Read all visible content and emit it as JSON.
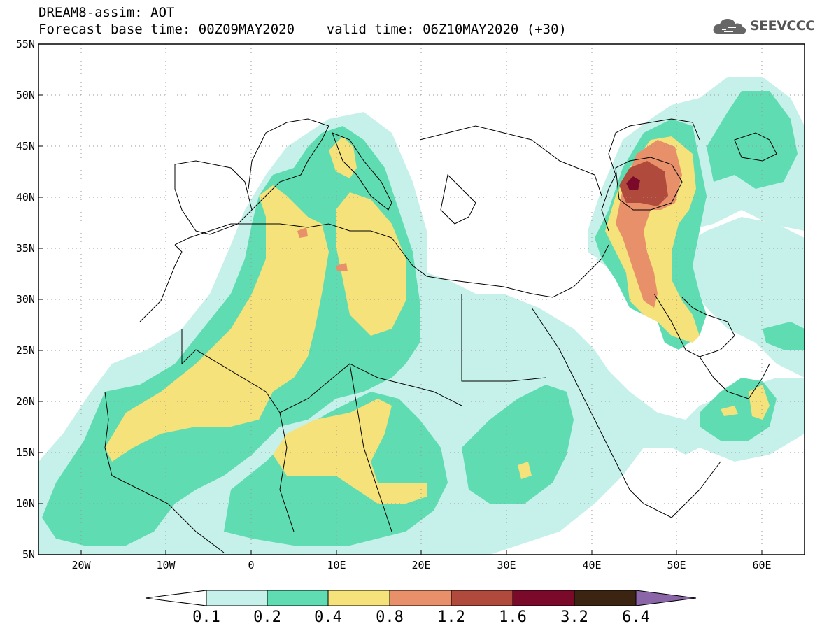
{
  "title": {
    "line1": "DREAM8-assim: AOT",
    "line2": "Forecast base time: 00Z09MAY2020    valid time: 06Z10MAY2020 (+30)"
  },
  "logo": {
    "text": "SEEVCCC",
    "icon": "cloud-icon"
  },
  "map": {
    "lat_labels": [
      "55N",
      "50N",
      "45N",
      "40N",
      "35N",
      "30N",
      "25N",
      "20N",
      "15N",
      "10N",
      "5N"
    ],
    "lon_labels": [
      "20W",
      "10W",
      "0",
      "10E",
      "20E",
      "30E",
      "40E",
      "50E",
      "60E"
    ],
    "lat_range": [
      5,
      55
    ],
    "lon_range": [
      -25,
      65
    ],
    "grid": "dotted"
  },
  "colorbar": {
    "labels": [
      "0.1",
      "0.2",
      "0.4",
      "0.8",
      "1.2",
      "1.6",
      "3.2",
      "6.4"
    ],
    "colors": [
      "#ffffff",
      "#c6f1ea",
      "#5fdcb2",
      "#f5e27a",
      "#e8906a",
      "#b04a3c",
      "#7b0a2a",
      "#3b2412",
      "#8a66a8"
    ]
  },
  "colors": {
    "level1": "#c6f1ea",
    "level2": "#5fdcb2",
    "level3": "#f5e27a",
    "level4": "#e8906a",
    "level5": "#b04a3c",
    "level6": "#7b0a2a"
  }
}
